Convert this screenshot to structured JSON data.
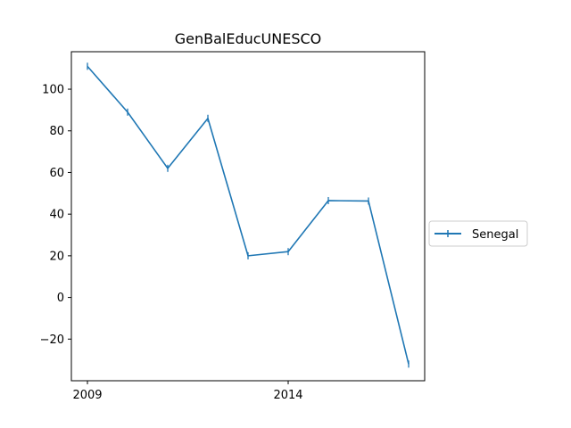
{
  "chart_data": {
    "type": "line",
    "title": "GenBalEducUNESCO",
    "xlabel": "",
    "ylabel": "",
    "x": [
      2009,
      2010,
      2011,
      2012,
      2013,
      2014,
      2015,
      2016,
      2017
    ],
    "series": [
      {
        "name": "Senegal",
        "color": "#1f77b4",
        "values": [
          111,
          89,
          62,
          86,
          20,
          22,
          46.5,
          46.3,
          -32
        ]
      }
    ],
    "xlim": [
      2008.6,
      2017.4
    ],
    "ylim": [
      -40,
      118
    ],
    "xticks": [
      2009,
      2014
    ],
    "xtick_labels": [
      "2009",
      "2014"
    ],
    "yticks": [
      -20,
      0,
      20,
      40,
      60,
      80,
      100
    ],
    "ytick_labels": [
      "−20",
      "0",
      "20",
      "40",
      "60",
      "80",
      "100"
    ],
    "grid": false,
    "legend_placement": "right"
  }
}
